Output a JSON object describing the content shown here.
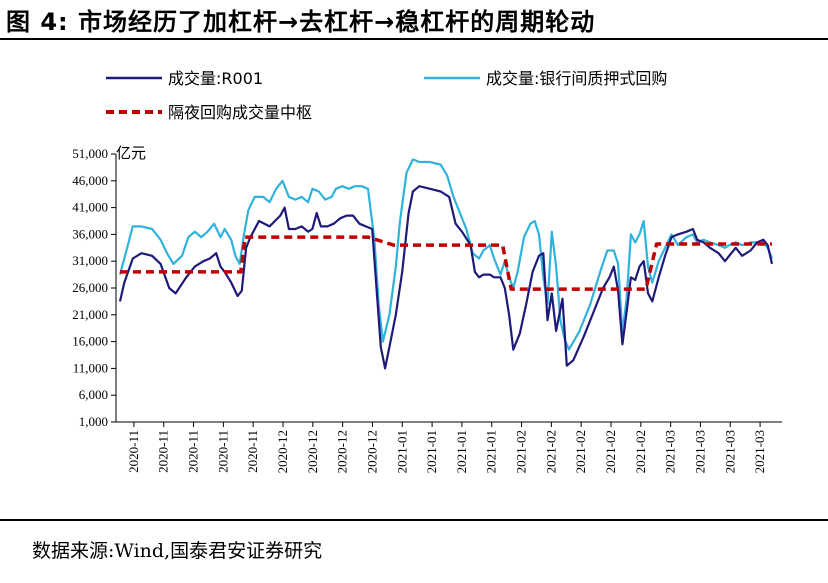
{
  "header": {
    "title": "图 4:  市场经历了加杠杆→去杠杆→稳杠杆的周期轮动"
  },
  "footer": {
    "source": "数据来源:Wind,国泰君安证券研究"
  },
  "chart_data": {
    "type": "line",
    "ylabel": "亿元",
    "ylim": [
      1000,
      51000
    ],
    "yticks": [
      1000,
      6000,
      11000,
      16000,
      21000,
      26000,
      31000,
      36000,
      41000,
      46000,
      51000
    ],
    "ytick_labels": [
      "1,000",
      "6,000",
      "11,000",
      "16,000",
      "21,000",
      "26,000",
      "31,000",
      "36,000",
      "41,000",
      "46,000",
      "51,000"
    ],
    "x_tick_labels": [
      "2020-11",
      "2020-11",
      "2020-11",
      "2020-11",
      "2020-11",
      "2020-12",
      "2020-12",
      "2020-12",
      "2020-12",
      "2021-01",
      "2021-01",
      "2021-01",
      "2021-01",
      "2021-02",
      "2021-02",
      "2021-02",
      "2021-02",
      "2021-02",
      "2021-03",
      "2021-03",
      "2021-03",
      "2021-03"
    ],
    "legend_position": "top",
    "series": [
      {
        "name": "成交量:R001",
        "color": "#1f1a7a",
        "style": "solid",
        "points": [
          [
            0,
            23500
          ],
          [
            0.2,
            27000
          ],
          [
            0.6,
            31500
          ],
          [
            1,
            32500
          ],
          [
            1.5,
            32000
          ],
          [
            1.9,
            30500
          ],
          [
            2.3,
            26000
          ],
          [
            2.6,
            25000
          ],
          [
            3.1,
            28000
          ],
          [
            3.5,
            30000
          ],
          [
            3.9,
            31000
          ],
          [
            4.2,
            31500
          ],
          [
            4.5,
            32500
          ],
          [
            4.7,
            30000
          ],
          [
            4.9,
            29000
          ],
          [
            5.2,
            27000
          ],
          [
            5.5,
            24500
          ],
          [
            5.7,
            25500
          ],
          [
            5.9,
            33500
          ],
          [
            6.1,
            35500
          ],
          [
            6.5,
            38500
          ],
          [
            7,
            37500
          ],
          [
            7.5,
            39500
          ],
          [
            7.7,
            41000
          ],
          [
            7.9,
            37000
          ],
          [
            8.2,
            37000
          ],
          [
            8.5,
            37500
          ],
          [
            8.8,
            36500
          ],
          [
            9.0,
            37000
          ],
          [
            9.2,
            40000
          ],
          [
            9.4,
            37500
          ],
          [
            9.7,
            37500
          ],
          [
            10.0,
            38000
          ],
          [
            10.3,
            39000
          ],
          [
            10.6,
            39500
          ],
          [
            10.9,
            39500
          ],
          [
            11.2,
            38000
          ],
          [
            11.5,
            37500
          ],
          [
            11.8,
            37000
          ],
          [
            12.0,
            26000
          ],
          [
            12.2,
            15000
          ],
          [
            12.4,
            11000
          ],
          [
            12.6,
            15000
          ],
          [
            12.9,
            21000
          ],
          [
            13.2,
            29000
          ],
          [
            13.5,
            40000
          ],
          [
            13.7,
            44000
          ],
          [
            14.0,
            45000
          ],
          [
            14.5,
            44500
          ],
          [
            15.0,
            44000
          ],
          [
            15.4,
            43000
          ],
          [
            15.7,
            38000
          ],
          [
            16.0,
            36500
          ],
          [
            16.4,
            34000
          ],
          [
            16.6,
            29000
          ],
          [
            16.8,
            28000
          ],
          [
            17.0,
            28500
          ],
          [
            17.3,
            28500
          ],
          [
            17.5,
            28000
          ],
          [
            17.8,
            28000
          ],
          [
            18.0,
            26000
          ],
          [
            18.2,
            21000
          ],
          [
            18.4,
            14500
          ],
          [
            18.7,
            17500
          ],
          [
            19.0,
            23000
          ],
          [
            19.3,
            29000
          ],
          [
            19.6,
            32000
          ],
          [
            19.8,
            32500
          ],
          [
            20.0,
            20000
          ],
          [
            20.2,
            25000
          ],
          [
            20.4,
            18000
          ],
          [
            20.7,
            24000
          ],
          [
            20.9,
            11500
          ],
          [
            21.2,
            12500
          ],
          [
            21.7,
            17000
          ],
          [
            22.2,
            22000
          ],
          [
            22.6,
            26000
          ],
          [
            22.9,
            28000
          ],
          [
            23.1,
            30000
          ],
          [
            23.3,
            25500
          ],
          [
            23.5,
            15500
          ],
          [
            23.7,
            21500
          ],
          [
            23.9,
            28000
          ],
          [
            24.1,
            27500
          ],
          [
            24.3,
            30000
          ],
          [
            24.5,
            31000
          ],
          [
            24.7,
            25000
          ],
          [
            24.9,
            23500
          ],
          [
            25.2,
            28000
          ],
          [
            25.5,
            32000
          ],
          [
            25.8,
            35500
          ],
          [
            26.1,
            36000
          ],
          [
            26.5,
            36500
          ],
          [
            26.8,
            37000
          ],
          [
            27.0,
            35000
          ],
          [
            27.3,
            34500
          ],
          [
            27.6,
            33500
          ],
          [
            28.0,
            32500
          ],
          [
            28.3,
            31000
          ],
          [
            28.5,
            32000
          ],
          [
            28.8,
            33500
          ],
          [
            29.1,
            32000
          ],
          [
            29.5,
            33000
          ],
          [
            29.8,
            34500
          ],
          [
            30.1,
            35000
          ],
          [
            30.3,
            34000
          ],
          [
            30.5,
            30500
          ]
        ]
      },
      {
        "name": "成交量:银行间质押式回购",
        "color": "#2fb3dc",
        "style": "solid",
        "points": [
          [
            0,
            28500
          ],
          [
            0.3,
            33000
          ],
          [
            0.6,
            37500
          ],
          [
            1,
            37500
          ],
          [
            1.5,
            37000
          ],
          [
            1.9,
            35000
          ],
          [
            2.2,
            32500
          ],
          [
            2.5,
            30500
          ],
          [
            2.9,
            32000
          ],
          [
            3.2,
            35500
          ],
          [
            3.5,
            36500
          ],
          [
            3.8,
            35500
          ],
          [
            4.1,
            36500
          ],
          [
            4.4,
            38000
          ],
          [
            4.7,
            35500
          ],
          [
            4.9,
            37000
          ],
          [
            5.2,
            35000
          ],
          [
            5.4,
            32000
          ],
          [
            5.6,
            30500
          ],
          [
            5.8,
            36000
          ],
          [
            6.0,
            40500
          ],
          [
            6.3,
            43000
          ],
          [
            6.7,
            43000
          ],
          [
            7.0,
            42000
          ],
          [
            7.3,
            44500
          ],
          [
            7.6,
            46000
          ],
          [
            7.9,
            43000
          ],
          [
            8.2,
            42500
          ],
          [
            8.5,
            43000
          ],
          [
            8.8,
            42000
          ],
          [
            9.0,
            44500
          ],
          [
            9.3,
            44000
          ],
          [
            9.6,
            42500
          ],
          [
            9.9,
            43000
          ],
          [
            10.1,
            44500
          ],
          [
            10.4,
            45000
          ],
          [
            10.7,
            44500
          ],
          [
            11.0,
            45000
          ],
          [
            11.3,
            45000
          ],
          [
            11.6,
            44500
          ],
          [
            11.9,
            35000
          ],
          [
            12.1,
            23000
          ],
          [
            12.3,
            16000
          ],
          [
            12.6,
            21000
          ],
          [
            12.9,
            30000
          ],
          [
            13.1,
            38500
          ],
          [
            13.4,
            47500
          ],
          [
            13.7,
            50000
          ],
          [
            14.0,
            49500
          ],
          [
            14.5,
            49500
          ],
          [
            15.0,
            49000
          ],
          [
            15.3,
            47000
          ],
          [
            15.6,
            43000
          ],
          [
            15.9,
            40000
          ],
          [
            16.2,
            37000
          ],
          [
            16.5,
            32500
          ],
          [
            16.8,
            31500
          ],
          [
            17.0,
            33000
          ],
          [
            17.3,
            34000
          ],
          [
            17.5,
            31500
          ],
          [
            17.8,
            28500
          ],
          [
            18.0,
            31000
          ],
          [
            18.2,
            28000
          ],
          [
            18.4,
            26000
          ],
          [
            18.6,
            29000
          ],
          [
            18.9,
            35500
          ],
          [
            19.2,
            38000
          ],
          [
            19.4,
            38500
          ],
          [
            19.6,
            36000
          ],
          [
            19.8,
            28000
          ],
          [
            20.0,
            23000
          ],
          [
            20.2,
            36500
          ],
          [
            20.4,
            30000
          ],
          [
            20.6,
            20000
          ],
          [
            20.8,
            16500
          ],
          [
            21.0,
            14500
          ],
          [
            21.5,
            18000
          ],
          [
            22.0,
            23000
          ],
          [
            22.5,
            29500
          ],
          [
            22.8,
            33000
          ],
          [
            23.1,
            33000
          ],
          [
            23.3,
            30500
          ],
          [
            23.5,
            17500
          ],
          [
            23.7,
            24000
          ],
          [
            23.9,
            36000
          ],
          [
            24.1,
            34500
          ],
          [
            24.3,
            36000
          ],
          [
            24.5,
            38500
          ],
          [
            24.7,
            30000
          ],
          [
            24.9,
            27000
          ],
          [
            25.2,
            31000
          ],
          [
            25.5,
            33500
          ],
          [
            25.8,
            36000
          ],
          [
            26.1,
            34000
          ],
          [
            26.5,
            35500
          ],
          [
            26.8,
            36000
          ],
          [
            27.0,
            34500
          ],
          [
            27.3,
            35000
          ],
          [
            27.6,
            34500
          ],
          [
            28.0,
            34000
          ],
          [
            28.3,
            33500
          ],
          [
            28.5,
            34000
          ],
          [
            28.8,
            34500
          ],
          [
            29.1,
            34000
          ],
          [
            29.5,
            34500
          ],
          [
            29.8,
            34500
          ],
          [
            30.1,
            34500
          ],
          [
            30.3,
            33500
          ],
          [
            30.5,
            31500
          ]
        ]
      },
      {
        "name": "隔夜回购成交量中枢",
        "color": "#c00000",
        "style": "dashed",
        "points": [
          [
            0,
            29000
          ],
          [
            5.65,
            29000
          ],
          [
            5.85,
            35500
          ],
          [
            11.6,
            35500
          ],
          [
            12.8,
            34000
          ],
          [
            17.9,
            34000
          ],
          [
            18.3,
            25800
          ],
          [
            24.6,
            25800
          ],
          [
            25.1,
            34200
          ],
          [
            30.5,
            34200
          ]
        ]
      }
    ]
  }
}
